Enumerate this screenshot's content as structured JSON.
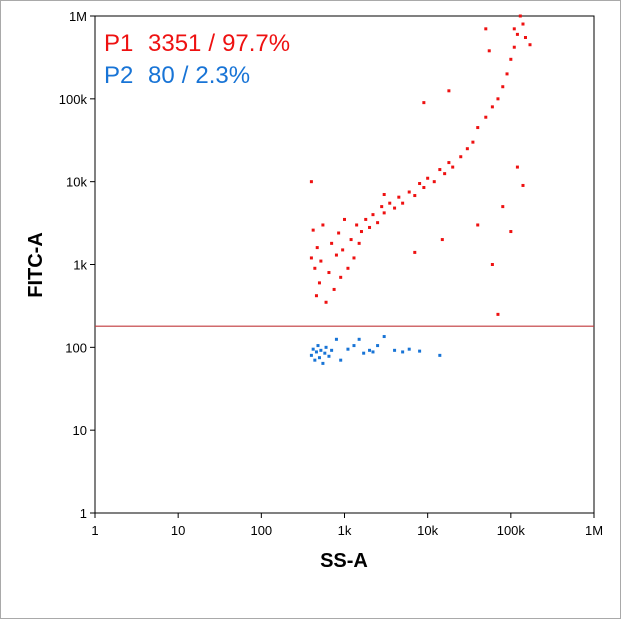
{
  "chart_data": {
    "type": "scatter",
    "title": "",
    "xlabel": "SS-A",
    "ylabel": "FITC-A",
    "x_scale": "log",
    "y_scale": "log",
    "xlim": [
      1,
      1000000
    ],
    "ylim": [
      1,
      1000000
    ],
    "x_ticks": [
      {
        "value": 1,
        "label": "1"
      },
      {
        "value": 10,
        "label": "10"
      },
      {
        "value": 100,
        "label": "100"
      },
      {
        "value": 1000,
        "label": "1k"
      },
      {
        "value": 10000,
        "label": "10k"
      },
      {
        "value": 100000,
        "label": "100k"
      },
      {
        "value": 1000000,
        "label": "1M"
      }
    ],
    "y_ticks": [
      {
        "value": 1,
        "label": "1"
      },
      {
        "value": 10,
        "label": "10"
      },
      {
        "value": 100,
        "label": "100"
      },
      {
        "value": 1000,
        "label": "1k"
      },
      {
        "value": 10000,
        "label": "10k"
      },
      {
        "value": 100000,
        "label": "100k"
      },
      {
        "value": 1000000,
        "label": "1M"
      }
    ],
    "grid": false,
    "gate_threshold_y": 180,
    "gate_line_color": "#c0393b",
    "gates": [
      {
        "name": "P1",
        "count": "3351",
        "percent": "97.7%",
        "color": "#ee1111"
      },
      {
        "name": "P2",
        "count": "80",
        "percent": "2.3%",
        "color": "#1874d6"
      }
    ],
    "series": [
      {
        "name": "P1",
        "color": "#ee1111",
        "points": [
          [
            400,
            1200
          ],
          [
            420,
            2600
          ],
          [
            440,
            900
          ],
          [
            460,
            420
          ],
          [
            470,
            1600
          ],
          [
            500,
            600
          ],
          [
            520,
            1100
          ],
          [
            550,
            3000
          ],
          [
            600,
            350
          ],
          [
            650,
            800
          ],
          [
            700,
            1800
          ],
          [
            750,
            500
          ],
          [
            800,
            1300
          ],
          [
            850,
            2400
          ],
          [
            900,
            700
          ],
          [
            950,
            1500
          ],
          [
            1000,
            3500
          ],
          [
            1100,
            900
          ],
          [
            1200,
            2000
          ],
          [
            1300,
            1200
          ],
          [
            1400,
            3000
          ],
          [
            1500,
            1800
          ],
          [
            1600,
            2500
          ],
          [
            1800,
            3500
          ],
          [
            2000,
            2800
          ],
          [
            2200,
            4000
          ],
          [
            2500,
            3200
          ],
          [
            2800,
            5000
          ],
          [
            3000,
            4200
          ],
          [
            3500,
            5500
          ],
          [
            4000,
            4800
          ],
          [
            4500,
            6500
          ],
          [
            5000,
            5500
          ],
          [
            6000,
            7500
          ],
          [
            7000,
            6800
          ],
          [
            8000,
            9500
          ],
          [
            9000,
            8500
          ],
          [
            10000,
            11000
          ],
          [
            12000,
            10000
          ],
          [
            14000,
            14000
          ],
          [
            16000,
            12500
          ],
          [
            18000,
            17000
          ],
          [
            20000,
            15000
          ],
          [
            25000,
            20000
          ],
          [
            30000,
            25000
          ],
          [
            35000,
            30000
          ],
          [
            40000,
            45000
          ],
          [
            50000,
            60000
          ],
          [
            60000,
            80000
          ],
          [
            70000,
            100000
          ],
          [
            80000,
            140000
          ],
          [
            90000,
            200000
          ],
          [
            100000,
            300000
          ],
          [
            110000,
            420000
          ],
          [
            120000,
            600000
          ],
          [
            130000,
            1000000
          ],
          [
            110000,
            700000
          ],
          [
            150000,
            550000
          ],
          [
            170000,
            450000
          ],
          [
            140000,
            800000
          ],
          [
            50000,
            700000
          ],
          [
            55000,
            380000
          ],
          [
            18000,
            125000
          ],
          [
            9000,
            90000
          ],
          [
            7000,
            1400
          ],
          [
            40000,
            3000
          ],
          [
            60000,
            1000
          ],
          [
            80000,
            5000
          ],
          [
            100000,
            2500
          ],
          [
            120000,
            15000
          ],
          [
            140000,
            9000
          ],
          [
            70000,
            250
          ],
          [
            400,
            10000
          ],
          [
            3000,
            7000
          ],
          [
            15000,
            2000
          ]
        ]
      },
      {
        "name": "P2",
        "color": "#1874d6",
        "points": [
          [
            400,
            80
          ],
          [
            420,
            95
          ],
          [
            440,
            70
          ],
          [
            460,
            88
          ],
          [
            480,
            105
          ],
          [
            500,
            75
          ],
          [
            520,
            92
          ],
          [
            550,
            64
          ],
          [
            580,
            85
          ],
          [
            600,
            100
          ],
          [
            650,
            78
          ],
          [
            700,
            92
          ],
          [
            800,
            125
          ],
          [
            900,
            70
          ],
          [
            1100,
            95
          ],
          [
            1300,
            105
          ],
          [
            1500,
            125
          ],
          [
            1700,
            85
          ],
          [
            2000,
            92
          ],
          [
            2200,
            88
          ],
          [
            2500,
            105
          ],
          [
            3000,
            135
          ],
          [
            4000,
            92
          ],
          [
            5000,
            88
          ],
          [
            6000,
            95
          ],
          [
            8000,
            90
          ],
          [
            14000,
            80
          ]
        ]
      }
    ]
  }
}
